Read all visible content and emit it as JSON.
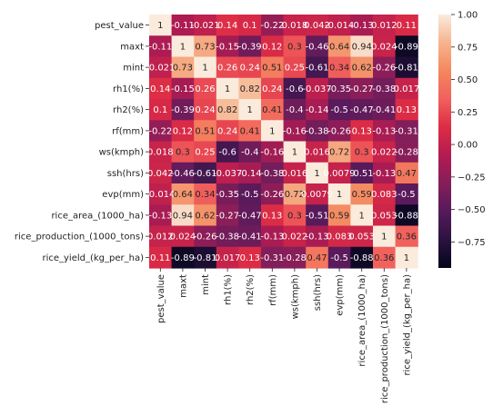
{
  "chart_data": {
    "type": "heatmap",
    "title": "",
    "xlabel": "",
    "ylabel": "",
    "variables": [
      "pest_value",
      "maxt",
      "mint",
      "rh1(%)",
      "rh2(%)",
      "rf(mm)",
      "ws(kmph)",
      "ssh(hrs)",
      "evp(mm)",
      "rice_area_(1000_ha)",
      "rice_production_(1000_tons)",
      "rice_yield_(kg_per_ha)"
    ],
    "values": [
      [
        1,
        -0.11,
        -0.021,
        0.14,
        0.1,
        -0.22,
        0.018,
        0.042,
        -0.014,
        -0.13,
        0.012,
        0.11
      ],
      [
        -0.11,
        1,
        0.73,
        -0.15,
        -0.39,
        0.12,
        0.3,
        -0.46,
        0.64,
        0.94,
        0.024,
        -0.89
      ],
      [
        -0.021,
        0.73,
        1,
        0.26,
        0.24,
        0.51,
        0.25,
        -0.61,
        0.34,
        0.62,
        -0.26,
        -0.81
      ],
      [
        0.14,
        -0.15,
        0.26,
        1,
        0.82,
        0.24,
        -0.6,
        -0.037,
        -0.35,
        -0.27,
        -0.38,
        0.017
      ],
      [
        0.1,
        -0.39,
        0.24,
        0.82,
        1,
        0.41,
        -0.4,
        -0.14,
        -0.5,
        -0.47,
        -0.41,
        0.13
      ],
      [
        -0.22,
        0.12,
        0.51,
        0.24,
        0.41,
        1,
        -0.16,
        -0.38,
        -0.26,
        0.13,
        -0.13,
        -0.31
      ],
      [
        0.018,
        0.3,
        0.25,
        -0.6,
        -0.4,
        -0.16,
        1,
        0.016,
        0.72,
        0.3,
        0.022,
        -0.28
      ],
      [
        0.042,
        -0.46,
        -0.61,
        -0.037,
        -0.14,
        -0.38,
        0.016,
        1,
        0.0079,
        -0.51,
        -0.13,
        0.47
      ],
      [
        -0.014,
        0.64,
        0.34,
        -0.35,
        -0.5,
        -0.26,
        0.72,
        0.0079,
        1,
        0.59,
        0.083,
        -0.5
      ],
      [
        -0.13,
        0.94,
        0.62,
        -0.27,
        -0.47,
        0.13,
        0.3,
        -0.51,
        0.59,
        1,
        0.053,
        -0.88
      ],
      [
        0.012,
        0.024,
        -0.26,
        -0.38,
        -0.41,
        -0.13,
        0.022,
        -0.13,
        0.083,
        0.053,
        1,
        0.36
      ],
      [
        0.11,
        -0.89,
        -0.81,
        0.017,
        0.13,
        -0.31,
        -0.28,
        0.47,
        -0.5,
        -0.88,
        0.36,
        1
      ]
    ],
    "display_values": [
      [
        "1",
        "-0.11",
        "-0.021",
        "0.14",
        "0.1",
        "-0.22",
        "0.018",
        "0.042",
        "-0.014",
        "-0.13",
        "0.012",
        "0.11"
      ],
      [
        "-0.11",
        "1",
        "0.73",
        "-0.15",
        "-0.39",
        "0.12",
        "0.3",
        "-0.46",
        "0.64",
        "0.94",
        "0.024",
        "-0.89"
      ],
      [
        "-0.021",
        "0.73",
        "1",
        "0.26",
        "0.24",
        "0.51",
        "0.25",
        "-0.61",
        "0.34",
        "0.62",
        "-0.26",
        "-0.81"
      ],
      [
        "0.14",
        "-0.15",
        "0.26",
        "1",
        "0.82",
        "0.24",
        "-0.6",
        "-0.037",
        "-0.35",
        "-0.27",
        "-0.38",
        "0.017"
      ],
      [
        "0.1",
        "-0.39",
        "0.24",
        "0.82",
        "1",
        "0.41",
        "-0.4",
        "-0.14",
        "-0.5",
        "-0.47",
        "-0.41",
        "0.13"
      ],
      [
        "-0.22",
        "0.12",
        "0.51",
        "0.24",
        "0.41",
        "1",
        "-0.16",
        "-0.38",
        "-0.26",
        "0.13",
        "-0.13",
        "-0.31"
      ],
      [
        "0.018",
        "0.3",
        "0.25",
        "-0.6",
        "-0.4",
        "-0.16",
        "1",
        "0.016",
        "0.72",
        "0.3",
        "0.022",
        "-0.28"
      ],
      [
        "0.042",
        "-0.46",
        "-0.61",
        "-0.037",
        "-0.14",
        "-0.38",
        "0.016",
        "1",
        "0.0079",
        "-0.51",
        "-0.13",
        "0.47"
      ],
      [
        "-0.014",
        "0.64",
        "0.34",
        "-0.35",
        "-0.5",
        "-0.26",
        "0.72",
        "0.0079",
        "1",
        "0.59",
        "0.083",
        "-0.5"
      ],
      [
        "-0.13",
        "0.94",
        "0.62",
        "-0.27",
        "-0.47",
        "0.13",
        "0.3",
        "-0.51",
        "0.59",
        "1",
        "0.053",
        "-0.88"
      ],
      [
        "0.012",
        "0.024",
        "-0.26",
        "-0.38",
        "-0.41",
        "-0.13",
        "0.022",
        "-0.13",
        "0.083",
        "0.053",
        "1",
        "0.36"
      ],
      [
        "0.11",
        "-0.89",
        "-0.81",
        "0.017",
        "0.13",
        "-0.31",
        "-0.28",
        "0.47",
        "-0.5",
        "-0.88",
        "0.36",
        "1"
      ]
    ],
    "colorbar": {
      "range": [
        -0.95,
        1.0
      ],
      "ticks": [
        1.0,
        0.75,
        0.5,
        0.25,
        0.0,
        -0.25,
        -0.5,
        -0.75
      ],
      "tick_labels": [
        "1.00",
        "0.75",
        "0.50",
        "0.25",
        "0.00",
        "−0.25",
        "−0.50",
        "−0.75"
      ]
    },
    "colormap": [
      "#03051a",
      "#2b1240",
      "#561a5b",
      "#841e5a",
      "#b31b51",
      "#dd2c45",
      "#f1605d",
      "#f4875e",
      "#f6b48e",
      "#faebdd"
    ],
    "annotation_colors": {
      "dark_text": "#262626",
      "light_text": "#ffffff"
    }
  }
}
